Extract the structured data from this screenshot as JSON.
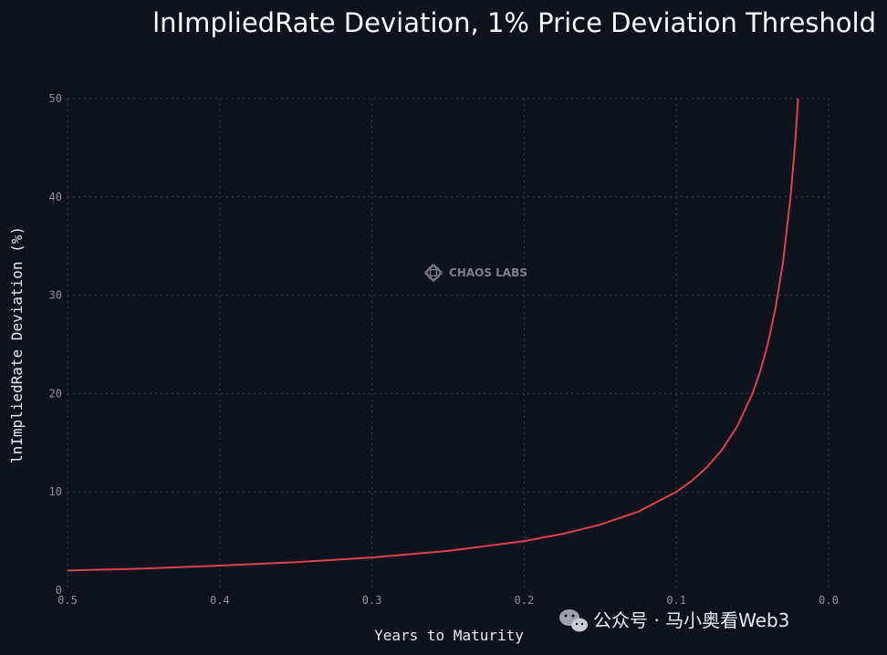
{
  "chart_data": {
    "type": "line",
    "title": "lnImpliedRate Deviation, 1% Price Deviation Threshold",
    "xlabel": "Years to Maturity",
    "ylabel": "lnImpliedRate Deviation (%)",
    "xlim": [
      0.5,
      0.0
    ],
    "ylim": [
      0,
      50
    ],
    "x_reversed": true,
    "x_ticks": [
      "0.5",
      "0.4",
      "0.3",
      "0.2",
      "0.1",
      "0.0"
    ],
    "y_ticks": [
      "0",
      "10",
      "20",
      "30",
      "40",
      "50"
    ],
    "grid": true,
    "series": [
      {
        "color": "#d9434e",
        "x": [
          0.5,
          0.45,
          0.4,
          0.35,
          0.3,
          0.25,
          0.2,
          0.175,
          0.15,
          0.125,
          0.1,
          0.09,
          0.08,
          0.07,
          0.06,
          0.05,
          0.045,
          0.04,
          0.035,
          0.03,
          0.025,
          0.022,
          0.02
        ],
        "y": [
          2.0,
          2.2,
          2.5,
          2.85,
          3.33,
          4.0,
          5.0,
          5.71,
          6.67,
          8.0,
          10.0,
          11.11,
          12.5,
          14.29,
          16.67,
          20.0,
          22.22,
          25.0,
          28.57,
          33.33,
          40.0,
          45.45,
          50.0
        ]
      }
    ]
  },
  "watermark": {
    "brand": "CHAOS LABS",
    "icon": "chaos-labs-logo-icon"
  },
  "footer": {
    "text": "公众号 · 马小奥看Web3",
    "icon": "wechat-icon"
  }
}
